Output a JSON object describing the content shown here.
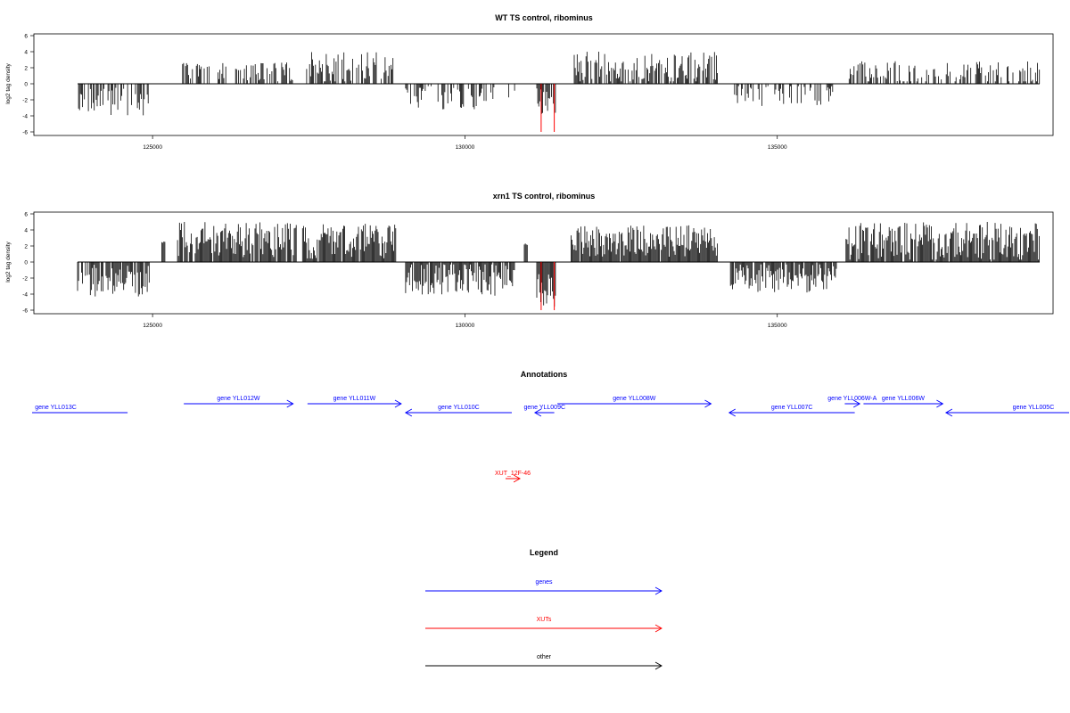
{
  "colors": {
    "gene": "#0000ff",
    "xut": "#ff0000",
    "other": "#000000",
    "track": "#000000",
    "highlight": "#ff0000"
  },
  "chart_data": [
    {
      "type": "bar",
      "title": "WT TS control, ribominus",
      "ylabel": "log2 tag density",
      "ylim": [
        -6,
        6
      ],
      "yticks": [
        "-6",
        "-4",
        "-2",
        "0",
        "2",
        "4",
        "6"
      ],
      "xlim": [
        123200,
        139400
      ],
      "xticks": [
        125000,
        130000,
        135000
      ],
      "xtick_labels": [
        "125000",
        "130000",
        "135000"
      ],
      "segments": [
        {
          "start": 123800,
          "end": 124950,
          "sign": -1,
          "mean": 2.2,
          "amp": 1.8,
          "density": 0.55
        },
        {
          "start": 125450,
          "end": 127250,
          "sign": 1,
          "mean": 1.5,
          "amp": 1.2,
          "density": 0.45
        },
        {
          "start": 127450,
          "end": 128850,
          "sign": 1,
          "mean": 2.0,
          "amp": 2.0,
          "density": 0.7
        },
        {
          "start": 129050,
          "end": 130500,
          "sign": -1,
          "mean": 1.6,
          "amp": 1.6,
          "density": 0.5
        },
        {
          "start": 130700,
          "end": 130900,
          "sign": -1,
          "mean": 1.0,
          "amp": 0.8,
          "density": 0.3
        },
        {
          "start": 131150,
          "end": 131450,
          "sign": -1,
          "mean": 2.3,
          "amp": 2.0,
          "density": 0.8
        },
        {
          "start": 131750,
          "end": 134050,
          "sign": 1,
          "mean": 2.0,
          "amp": 2.0,
          "density": 0.75
        },
        {
          "start": 134300,
          "end": 135900,
          "sign": -1,
          "mean": 1.5,
          "amp": 1.3,
          "density": 0.4
        },
        {
          "start": 136150,
          "end": 139200,
          "sign": 1,
          "mean": 1.4,
          "amp": 1.5,
          "density": 0.45
        }
      ],
      "highlight_bars": [
        {
          "x": 131220,
          "y": -6.0
        },
        {
          "x": 131430,
          "y": -6.0
        }
      ]
    },
    {
      "type": "bar",
      "title": "xrn1 TS control, ribominus",
      "ylabel": "log2 tag density",
      "ylim": [
        -6,
        6
      ],
      "yticks": [
        "-6",
        "-4",
        "-2",
        "0",
        "2",
        "4",
        "6"
      ],
      "xlim": [
        123200,
        139400
      ],
      "xticks": [
        125000,
        130000,
        135000
      ],
      "xtick_labels": [
        "125000",
        "130000",
        "135000"
      ],
      "segments": [
        {
          "start": 123800,
          "end": 124950,
          "sign": -1,
          "mean": 2.3,
          "amp": 2.0,
          "density": 0.75
        },
        {
          "start": 125150,
          "end": 125200,
          "sign": 1,
          "mean": 2.5,
          "amp": 0.1,
          "density": 1.0
        },
        {
          "start": 125400,
          "end": 127300,
          "sign": 1,
          "mean": 2.8,
          "amp": 2.2,
          "density": 0.95
        },
        {
          "start": 127400,
          "end": 128900,
          "sign": 1,
          "mean": 2.6,
          "amp": 2.2,
          "density": 0.95
        },
        {
          "start": 129050,
          "end": 130800,
          "sign": -1,
          "mean": 2.0,
          "amp": 2.2,
          "density": 0.9
        },
        {
          "start": 130950,
          "end": 131000,
          "sign": 1,
          "mean": 2.2,
          "amp": 0.1,
          "density": 1.0
        },
        {
          "start": 131150,
          "end": 131450,
          "sign": -1,
          "mean": 3.5,
          "amp": 2.3,
          "density": 1.0
        },
        {
          "start": 131700,
          "end": 134050,
          "sign": 1,
          "mean": 2.6,
          "amp": 2.0,
          "density": 0.95
        },
        {
          "start": 134250,
          "end": 135950,
          "sign": -1,
          "mean": 2.0,
          "amp": 1.8,
          "density": 0.9
        },
        {
          "start": 136100,
          "end": 139200,
          "sign": 1,
          "mean": 2.6,
          "amp": 2.4,
          "density": 0.95
        }
      ],
      "highlight_bars": [
        {
          "x": 131220,
          "y": -6.0
        },
        {
          "x": 131430,
          "y": -6.0
        }
      ]
    }
  ],
  "annotations": {
    "title": "Annotations",
    "features": [
      {
        "label": "gene YLL013C",
        "kind": "gene",
        "start": 122300,
        "end": 124600,
        "strand": "-",
        "row": 1
      },
      {
        "label": "gene YLL012W",
        "kind": "gene",
        "start": 125500,
        "end": 127250,
        "strand": "+",
        "row": 0
      },
      {
        "label": "gene YLL011W",
        "kind": "gene",
        "start": 127480,
        "end": 128980,
        "strand": "+",
        "row": 0
      },
      {
        "label": "gene YLL010C",
        "kind": "gene",
        "start": 129050,
        "end": 130750,
        "strand": "-",
        "row": 1
      },
      {
        "label": "gene YLL009C",
        "kind": "gene",
        "start": 131120,
        "end": 131430,
        "strand": "-",
        "row": 1
      },
      {
        "label": "gene YLL008W",
        "kind": "gene",
        "start": 131480,
        "end": 133940,
        "strand": "+",
        "row": 0
      },
      {
        "label": "gene YLL007C",
        "kind": "gene",
        "start": 134230,
        "end": 136240,
        "strand": "-",
        "row": 1
      },
      {
        "label": "gene YLL006W-A",
        "kind": "gene",
        "start": 136080,
        "end": 136320,
        "strand": "+",
        "row": 0
      },
      {
        "label": "gene YLL006W",
        "kind": "gene",
        "start": 136380,
        "end": 137650,
        "strand": "+",
        "row": 0
      },
      {
        "label": "gene YLL005C",
        "kind": "gene",
        "start": 137700,
        "end": 140500,
        "strand": "-",
        "row": 1
      },
      {
        "label": "XUT_12F-46",
        "kind": "xut",
        "start": 130650,
        "end": 130880,
        "strand": "+",
        "row": 2
      }
    ]
  },
  "legend": {
    "title": "Legend",
    "items": [
      {
        "label": "genes",
        "kind": "gene"
      },
      {
        "label": "XUTs",
        "kind": "xut"
      },
      {
        "label": "other",
        "kind": "other"
      }
    ]
  }
}
